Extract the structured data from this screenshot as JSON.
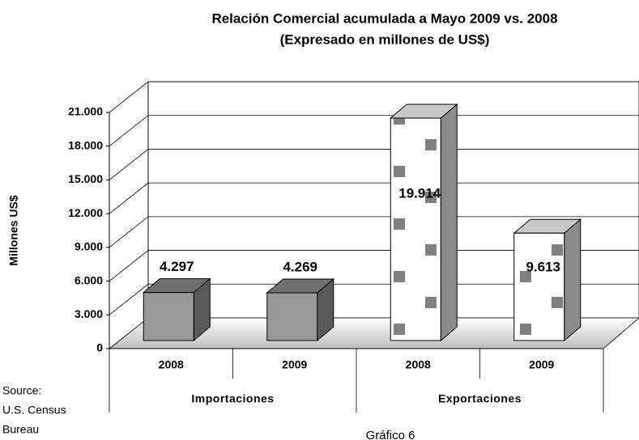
{
  "chart_data": {
    "type": "bar3d",
    "title": "Relación Comercial acumulada a Mayo 2009 vs. 2008",
    "subtitle": "(Expresado en millones de US$)",
    "y_label": "Millones US$",
    "categories": [
      "2008",
      "2009",
      "2008",
      "2009"
    ],
    "groups": [
      "Importaciones",
      "Exportaciones"
    ],
    "values": [
      4297,
      4269,
      19914,
      9613
    ],
    "value_labels": [
      "4.297",
      "4.269",
      "19.914",
      "9.613"
    ],
    "colors": [
      "#999999",
      "#999999",
      "#ffffff",
      "#ffffff"
    ],
    "ylim": [
      0,
      21000
    ],
    "yticks": [
      0,
      {
        "value": 3000,
        "label": "3.000"
      },
      {
        "value": 6000,
        "label": "6.000"
      },
      {
        "value": 9000,
        "label": "9.000"
      },
      {
        "value": 12000,
        "label": "12.000"
      },
      {
        "value": 15000,
        "label": "15.000"
      },
      {
        "value": 18000,
        "label": "18.000"
      },
      {
        "value": 21000,
        "label": "21.000"
      }
    ],
    "grid": true,
    "source": [
      "Source:",
      "U.S. Census",
      "Bureau"
    ],
    "caption": "Gráfico 6"
  }
}
